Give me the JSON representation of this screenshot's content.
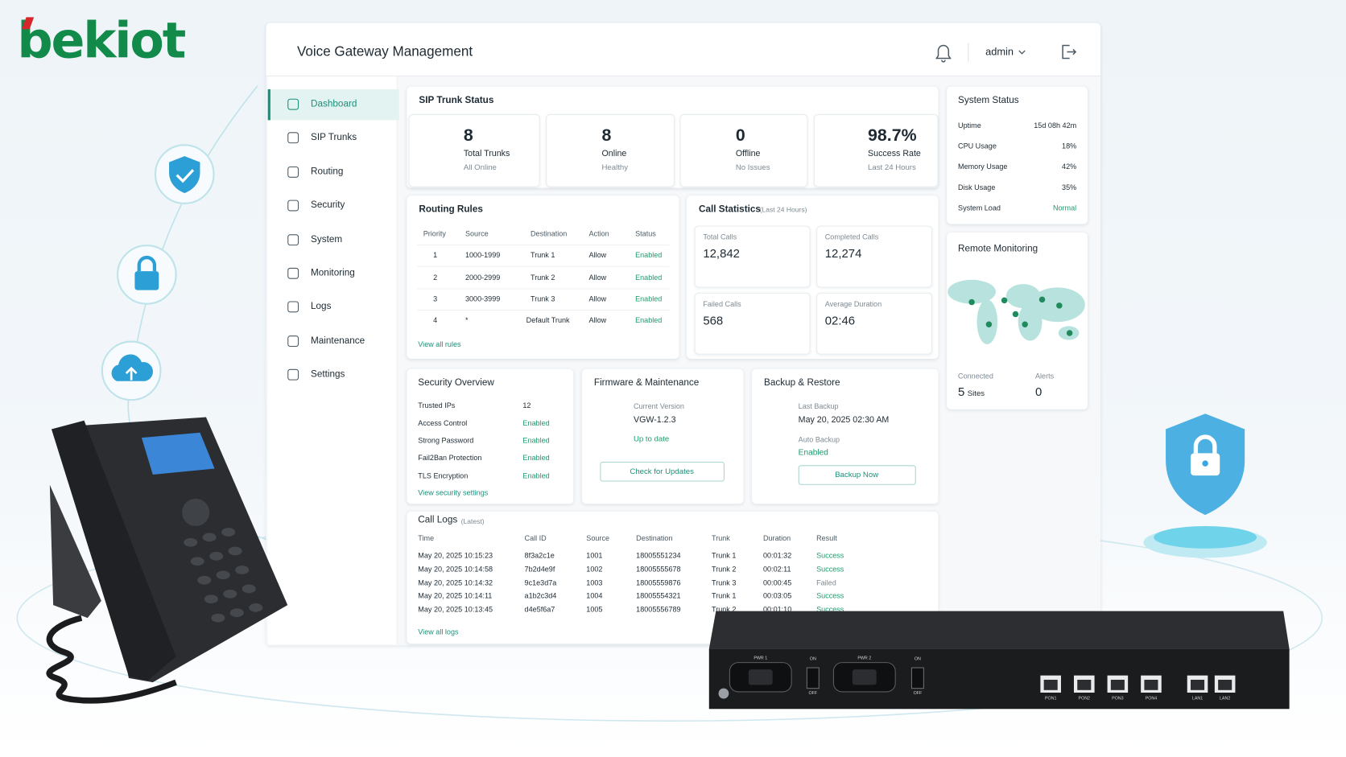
{
  "brand": "bekiot",
  "header": {
    "title": "Voice Gateway Management",
    "user": "admin"
  },
  "nav": [
    "Dashboard",
    "SIP Trunks",
    "Routing",
    "Security",
    "System",
    "Monitoring",
    "Logs",
    "Maintenance",
    "Settings"
  ],
  "sip_trunk_status": {
    "title": "SIP Trunk Status",
    "cards": [
      {
        "value": 8,
        "label": "Total Trunks",
        "sub": "All Online"
      },
      {
        "value": 8,
        "label": "Online",
        "sub": "Healthy"
      },
      {
        "value": 0,
        "label": "Offline",
        "sub": "No Issues"
      },
      {
        "value": "98.7%",
        "label": "Success Rate",
        "sub": "Last 24 Hours"
      }
    ]
  },
  "system_status": {
    "title": "System Status",
    "rows": [
      [
        "Uptime",
        "15d 08h 42m"
      ],
      [
        "CPU Usage",
        "18%"
      ],
      [
        "Memory Usage",
        "42%"
      ],
      [
        "Disk Usage",
        "35%"
      ],
      [
        "System Load",
        "Normal"
      ]
    ]
  },
  "routing_rules": {
    "title": "Routing Rules",
    "columns": [
      "Priority",
      "Source",
      "Destination",
      "Action",
      "Status"
    ],
    "rows": [
      [
        1,
        "1000-1999",
        "Trunk 1",
        "Allow",
        "Enabled"
      ],
      [
        2,
        "2000-2999",
        "Trunk 2",
        "Allow",
        "Enabled"
      ],
      [
        3,
        "3000-3999",
        "Trunk 3",
        "Allow",
        "Enabled"
      ],
      [
        4,
        "*",
        "Default Trunk",
        "Allow",
        "Enabled"
      ]
    ],
    "link": "View all rules"
  },
  "call_statistics": {
    "title": "Call Statistics",
    "note": "(Last 24 Hours)",
    "cards": [
      {
        "label": "Total Calls",
        "value": "12,842"
      },
      {
        "label": "Completed Calls",
        "value": "12,274"
      },
      {
        "label": "Failed Calls",
        "value": 568
      },
      {
        "label": "Average Duration",
        "value": "02:46"
      }
    ]
  },
  "remote_monitoring": {
    "title": "Remote Monitoring",
    "connected_label": "Connected",
    "connected_value": 5,
    "connected_unit": "Sites",
    "alerts_label": "Alerts",
    "alerts_value": 0
  },
  "security_overview": {
    "title": "Security Overview",
    "rows": [
      [
        "Trusted IPs",
        12
      ],
      [
        "Access Control",
        "Enabled"
      ],
      [
        "Strong Password",
        "Enabled"
      ],
      [
        "Fail2Ban Protection",
        "Enabled"
      ],
      [
        "TLS Encryption",
        "Enabled"
      ]
    ],
    "link": "View security settings"
  },
  "firmware": {
    "title": "Firmware & Maintenance",
    "version_label": "Current Version",
    "version": "VGW-1.2.3",
    "status": "Up to date",
    "button": "Check for Updates"
  },
  "backup": {
    "title": "Backup & Restore",
    "last_label": "Last Backup",
    "last": "May 20, 2025 02:30 AM",
    "auto_label": "Auto Backup",
    "auto": "Enabled",
    "button": "Backup Now"
  },
  "call_logs": {
    "title": "Call Logs",
    "note": "(Latest)",
    "columns": [
      "Time",
      "Call ID",
      "Source",
      "Destination",
      "Trunk",
      "Duration",
      "Result"
    ],
    "rows": [
      [
        "May 20, 2025 10:15:23",
        "8f3a2c1e",
        1001,
        18005551234,
        "Trunk 1",
        "00:01:32",
        "Success"
      ],
      [
        "May 20, 2025 10:14:58",
        "7b2d4e9f",
        1002,
        18005555678,
        "Trunk 2",
        "00:02:11",
        "Success"
      ],
      [
        "May 20, 2025 10:14:32",
        "9c1e3d7a",
        1003,
        18005559876,
        "Trunk 3",
        "00:00:45",
        "Failed"
      ],
      [
        "May 20, 2025 10:14:11",
        "a1b2c3d4",
        1004,
        18005554321,
        "Trunk 1",
        "00:03:05",
        "Success"
      ],
      [
        "May 20, 2025 10:13:45",
        "d4e5f6a7",
        1005,
        18005556789,
        "Trunk 2",
        "00:01:10",
        "Success"
      ]
    ],
    "link": "View all logs"
  },
  "device": {
    "labels": [
      "PWR 1",
      "ON",
      "OFF",
      "PWR 2",
      "ON",
      "OFF",
      "PON1",
      "PON2",
      "PON3",
      "PON4",
      "LAN1",
      "LAN2"
    ]
  }
}
